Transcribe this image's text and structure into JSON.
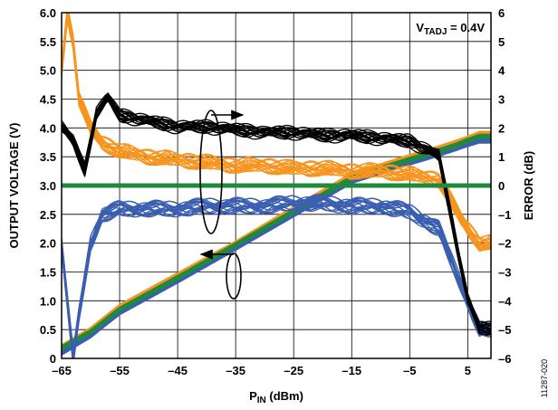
{
  "chart_data": {
    "type": "line",
    "title": "",
    "annotation": {
      "prefix": "V",
      "subscript": "TADJ",
      "suffix": " = 0.4V"
    },
    "xlabel": {
      "main": "P",
      "sub": "IN",
      "rest": " (dBm)"
    },
    "ylabel_left": "OUTPUT VOLTAGE (V)",
    "ylabel_right": "ERROR (dB)",
    "xlim": [
      -65,
      5
    ],
    "ylim_left": [
      0,
      6
    ],
    "ylim_right": [
      -6,
      6
    ],
    "x_ticks": [
      -65,
      -55,
      -45,
      -35,
      -25,
      -15,
      -5,
      5
    ],
    "x_tick_labels": [
      "–65",
      "–55",
      "–45",
      "–35",
      "–25",
      "–15",
      "–5",
      "5"
    ],
    "y_left_ticks": [
      0,
      0.5,
      1.0,
      1.5,
      2.0,
      2.5,
      3.0,
      3.5,
      4.0,
      4.5,
      5.0,
      5.5,
      6.0
    ],
    "y_left_tick_labels": [
      "0",
      "0.5",
      "1.0",
      "1.5",
      "2.0",
      "2.5",
      "3.0",
      "3.5",
      "4.0",
      "4.5",
      "5.0",
      "5.5",
      "6.0"
    ],
    "y_right_ticks": [
      -6,
      -5,
      -4,
      -3,
      -2,
      -1,
      0,
      1,
      2,
      3,
      4,
      5,
      6
    ],
    "y_right_tick_labels": [
      "–6",
      "–5",
      "–4",
      "–3",
      "–2",
      "–1",
      "0",
      "1",
      "2",
      "3",
      "4",
      "5",
      "6"
    ],
    "grid": true,
    "series": [
      {
        "axis": "left",
        "color": "#3a5fb0",
        "x": [
          -65,
          -60,
          -55,
          -45,
          -35,
          -25,
          -15,
          -5,
          0,
          3,
          5,
          7
        ],
        "y": [
          0.1,
          0.4,
          0.8,
          1.35,
          1.92,
          2.5,
          3.08,
          3.4,
          3.55,
          3.65,
          3.72,
          3.78
        ]
      },
      {
        "axis": "left",
        "color": "#f7941d",
        "x": [
          -65,
          -60,
          -55,
          -45,
          -35,
          -25,
          -15,
          -5,
          0,
          3,
          5,
          7
        ],
        "y": [
          0.2,
          0.5,
          0.9,
          1.45,
          2.0,
          2.6,
          3.18,
          3.5,
          3.65,
          3.75,
          3.82,
          3.9
        ]
      },
      {
        "axis": "left",
        "color": "#1f8a3c",
        "x": [
          -65,
          -60,
          -55,
          -45,
          -35,
          -25,
          -15,
          -5,
          0,
          3,
          5,
          7
        ],
        "y": [
          0.18,
          0.46,
          0.85,
          1.4,
          1.97,
          2.55,
          3.13,
          3.45,
          3.6,
          3.7,
          3.78,
          3.85
        ]
      },
      {
        "axis": "right",
        "color": "#3a5fb0",
        "x": [
          -65,
          -64,
          -63,
          -62,
          -60,
          -58,
          -55,
          -50,
          -45,
          -40,
          -35,
          -30,
          -25,
          -20,
          -15,
          -10,
          -5,
          0,
          2,
          4,
          7
        ],
        "y": [
          -2.0,
          -4.0,
          -6.0,
          -4.5,
          -2.0,
          -1.0,
          -0.8,
          -0.8,
          -0.8,
          -0.7,
          -0.7,
          -0.7,
          -0.6,
          -0.6,
          -0.7,
          -0.7,
          -0.9,
          -1.5,
          -2.5,
          -3.5,
          -5.0
        ]
      },
      {
        "axis": "right",
        "color": "#f7941d",
        "x": [
          -65,
          -64,
          -63,
          -62,
          -60,
          -58,
          -55,
          -50,
          -45,
          -40,
          -35,
          -30,
          -25,
          -20,
          -15,
          -10,
          -5,
          0,
          2,
          4,
          7
        ],
        "y": [
          4.0,
          6.0,
          5.0,
          3.0,
          2.0,
          1.5,
          1.2,
          1.0,
          0.9,
          0.8,
          0.7,
          0.7,
          0.6,
          0.6,
          0.5,
          0.5,
          0.4,
          0.2,
          -0.5,
          -1.2,
          -2.0
        ]
      },
      {
        "axis": "right",
        "color": "#000000",
        "x": [
          -65,
          -63,
          -61,
          -59,
          -57,
          -55,
          -50,
          -45,
          -40,
          -35,
          -30,
          -25,
          -20,
          -15,
          -10,
          -5,
          0,
          3,
          5,
          7
        ],
        "y": [
          2.0,
          1.5,
          0.5,
          2.5,
          3.0,
          2.4,
          2.2,
          2.0,
          2.0,
          1.9,
          1.8,
          1.8,
          1.7,
          1.7,
          1.6,
          1.5,
          1.0,
          -2.0,
          -4.0,
          -5.0
        ]
      },
      {
        "axis": "right",
        "color": "#1f8a3c",
        "x": [
          -65,
          7
        ],
        "y": [
          0,
          0
        ]
      }
    ]
  },
  "figure_id": "11287-020"
}
